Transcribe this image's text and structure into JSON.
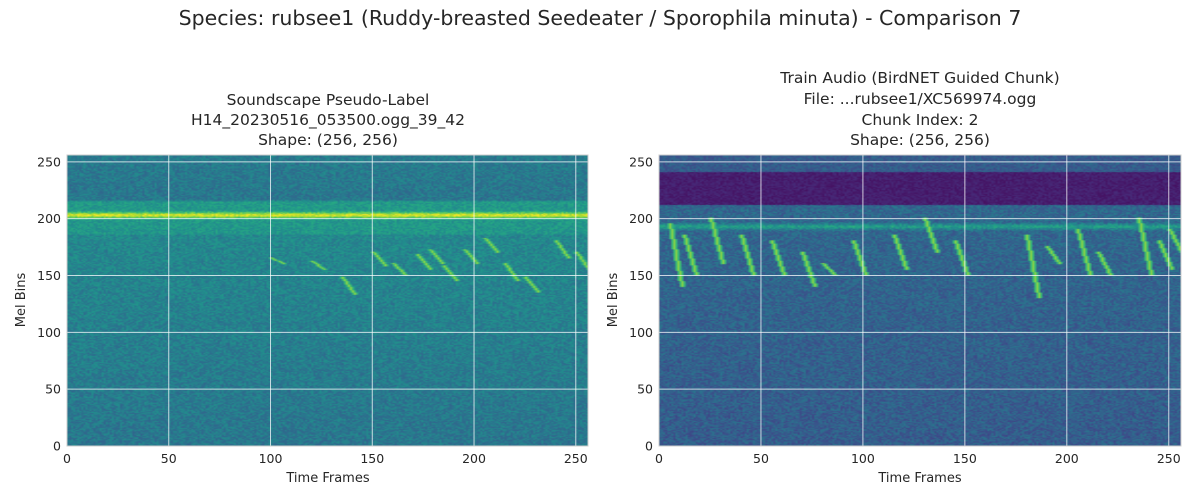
{
  "figure": {
    "suptitle": "Species: rubsee1 (Ruddy-breasted Seedeater / Sporophila minuta) - Comparison 7"
  },
  "chart_data": [
    {
      "type": "heatmap",
      "colormap": "viridis",
      "title_lines": [
        "Soundscape Pseudo-Label",
        "H14_20230516_053500.ogg_39_42",
        "Shape: (256, 256)"
      ],
      "xlabel": "Time Frames",
      "ylabel": "Mel Bins",
      "xlim": [
        0,
        256
      ],
      "ylim": [
        0,
        256
      ],
      "xticks": [
        0,
        50,
        100,
        150,
        200,
        250
      ],
      "yticks": [
        0,
        50,
        100,
        150,
        200,
        250
      ],
      "grid": true,
      "features": {
        "band_rows": [
          200,
          205
        ],
        "calls": [
          [
            100,
            165,
            160
          ],
          [
            120,
            162,
            155
          ],
          [
            135,
            148,
            133
          ],
          [
            150,
            170,
            158
          ],
          [
            160,
            160,
            150
          ],
          [
            172,
            168,
            155
          ],
          [
            178,
            172,
            160
          ],
          [
            185,
            158,
            145
          ],
          [
            195,
            172,
            160
          ],
          [
            205,
            182,
            170
          ],
          [
            215,
            160,
            145
          ],
          [
            225,
            148,
            135
          ],
          [
            240,
            180,
            165
          ],
          [
            250,
            170,
            155
          ]
        ]
      }
    },
    {
      "type": "heatmap",
      "colormap": "viridis",
      "title_lines": [
        "Train Audio (BirdNET Guided Chunk)",
        "File: ...rubsee1/XC569974.ogg",
        "Chunk Index: 2",
        "Shape: (256, 256)"
      ],
      "xlabel": "Time Frames",
      "ylabel": "Mel Bins",
      "xlim": [
        0,
        256
      ],
      "ylim": [
        0,
        256
      ],
      "xticks": [
        0,
        50,
        100,
        150,
        200,
        250
      ],
      "yticks": [
        0,
        50,
        100,
        150,
        200,
        250
      ],
      "grid": true,
      "features": {
        "dark_band": [
          212,
          240
        ],
        "band_rows": [
          190,
          195
        ],
        "calls": [
          [
            5,
            195,
            140
          ],
          [
            12,
            185,
            150
          ],
          [
            25,
            200,
            160
          ],
          [
            40,
            185,
            150
          ],
          [
            55,
            180,
            150
          ],
          [
            70,
            170,
            140
          ],
          [
            80,
            160,
            150
          ],
          [
            95,
            180,
            150
          ],
          [
            115,
            185,
            155
          ],
          [
            130,
            200,
            170
          ],
          [
            145,
            180,
            150
          ],
          [
            180,
            185,
            130
          ],
          [
            190,
            175,
            160
          ],
          [
            205,
            190,
            150
          ],
          [
            215,
            170,
            150
          ],
          [
            235,
            200,
            150
          ],
          [
            245,
            180,
            155
          ],
          [
            250,
            190,
            170
          ]
        ]
      }
    }
  ]
}
